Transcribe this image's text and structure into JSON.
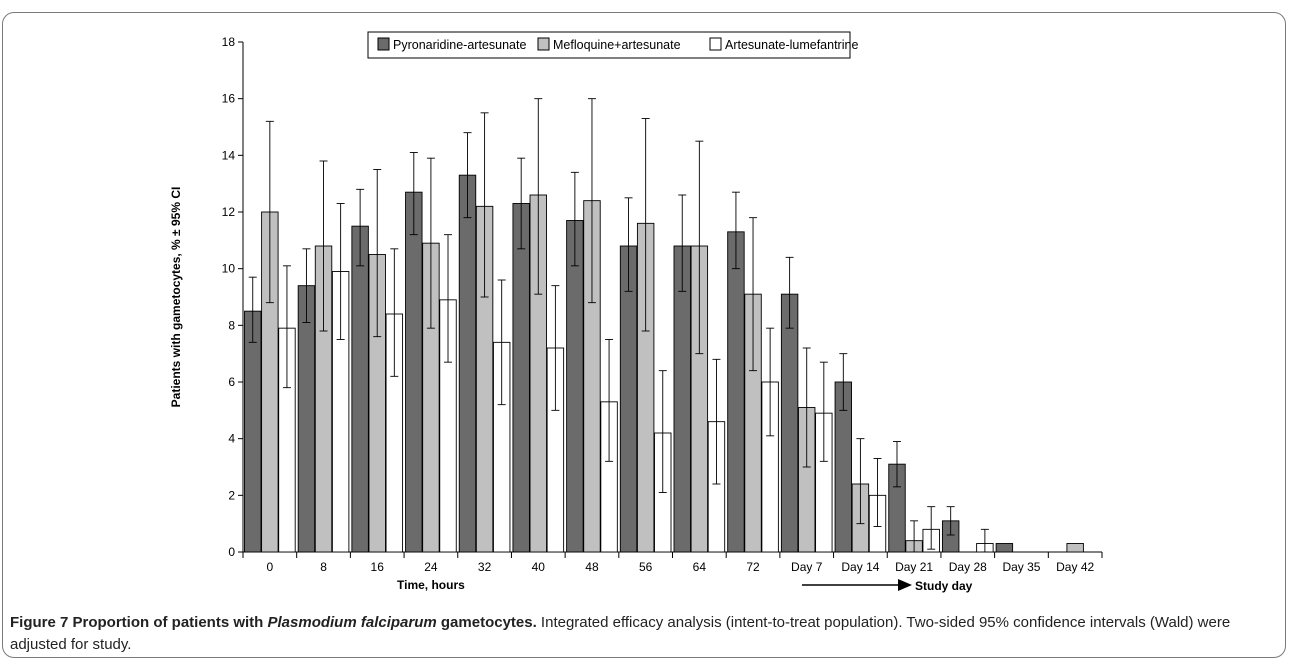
{
  "chart_data": {
    "type": "bar",
    "title": "",
    "xlabel": "Time, hours",
    "secondary_xlabel": "Study day",
    "ylabel": "Patients with gametocytes, % ± 95% CI",
    "ylim": [
      0,
      18
    ],
    "yticks": [
      0,
      2,
      4,
      6,
      8,
      10,
      12,
      14,
      16,
      18
    ],
    "grid": false,
    "legend_position": "top",
    "categories": [
      "0",
      "8",
      "16",
      "24",
      "32",
      "40",
      "48",
      "56",
      "64",
      "72",
      "Day 7",
      "Day 14",
      "Day 21",
      "Day 28",
      "Day 35",
      "Day 42"
    ],
    "series": [
      {
        "name": "Pyronaridine-artesunate",
        "color": "#6b6b6b",
        "values": [
          8.5,
          9.4,
          11.5,
          12.7,
          13.3,
          12.3,
          11.7,
          10.8,
          10.8,
          11.3,
          9.1,
          6.0,
          3.1,
          1.1,
          0.3,
          null
        ],
        "ci_low": [
          7.4,
          8.1,
          10.1,
          11.2,
          11.8,
          10.7,
          10.1,
          9.2,
          9.2,
          10.0,
          7.9,
          5.0,
          2.3,
          0.6,
          null,
          null
        ],
        "ci_high": [
          9.7,
          10.7,
          12.8,
          14.1,
          14.8,
          13.9,
          13.4,
          12.5,
          12.6,
          12.7,
          10.4,
          7.0,
          3.9,
          1.6,
          null,
          null
        ]
      },
      {
        "name": "Mefloquine+artesunate",
        "color": "#c0c0c0",
        "values": [
          12.0,
          10.8,
          10.5,
          10.9,
          12.2,
          12.6,
          12.4,
          11.6,
          10.8,
          9.1,
          5.1,
          2.4,
          0.4,
          null,
          null,
          0.3
        ],
        "ci_low": [
          8.8,
          7.8,
          7.6,
          7.9,
          9.0,
          9.1,
          8.8,
          7.8,
          7.0,
          6.4,
          3.0,
          1.0,
          0.0,
          null,
          null,
          null
        ],
        "ci_high": [
          15.2,
          13.8,
          13.5,
          13.9,
          15.5,
          16.0,
          16.0,
          15.3,
          14.5,
          11.8,
          7.2,
          4.0,
          1.1,
          null,
          null,
          null
        ]
      },
      {
        "name": "Artesunate-lumefantrine",
        "color": "#ffffff",
        "values": [
          7.9,
          9.9,
          8.4,
          8.9,
          7.4,
          7.2,
          5.3,
          4.2,
          4.6,
          6.0,
          4.9,
          2.0,
          0.8,
          0.3,
          null,
          null
        ],
        "ci_low": [
          5.8,
          7.5,
          6.2,
          6.7,
          5.2,
          5.0,
          3.2,
          2.1,
          2.4,
          4.1,
          3.2,
          0.9,
          0.1,
          0.0,
          null,
          null
        ],
        "ci_high": [
          10.1,
          12.3,
          10.7,
          11.2,
          9.6,
          9.4,
          7.5,
          6.4,
          6.8,
          7.9,
          6.7,
          3.3,
          1.6,
          0.8,
          null,
          null
        ]
      }
    ]
  },
  "caption": {
    "figure_label": "Figure 7 Proportion of patients with ",
    "species": "Plasmodium falciparum",
    "figure_title_end": " gametocytes.",
    "text": " Integrated efficacy analysis (intent-to-treat population). Two-sided 95% confidence intervals (Wald) were adjusted for study."
  }
}
